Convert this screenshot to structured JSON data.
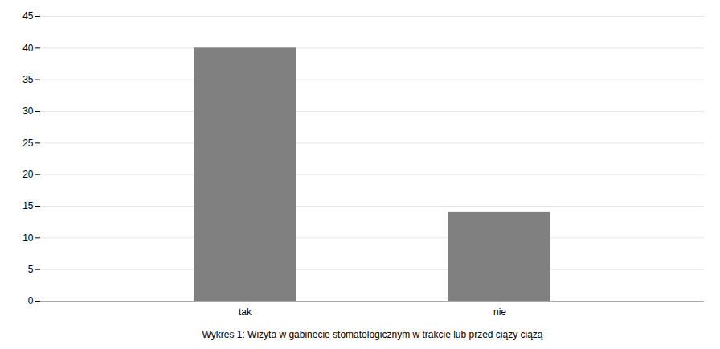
{
  "chart_data": {
    "type": "bar",
    "xlabel": "Wykres 1: Wizyta w gabinecie stomatologicznym w trakcie lub przed ciąży ciążą",
    "categories": [
      "tak",
      "nie"
    ],
    "values": [
      40,
      14
    ],
    "color": "#808080",
    "ylim": [
      0,
      45
    ],
    "yticks": [
      0,
      5,
      10,
      15,
      20,
      25,
      30,
      35,
      40,
      45
    ],
    "grid": true
  }
}
